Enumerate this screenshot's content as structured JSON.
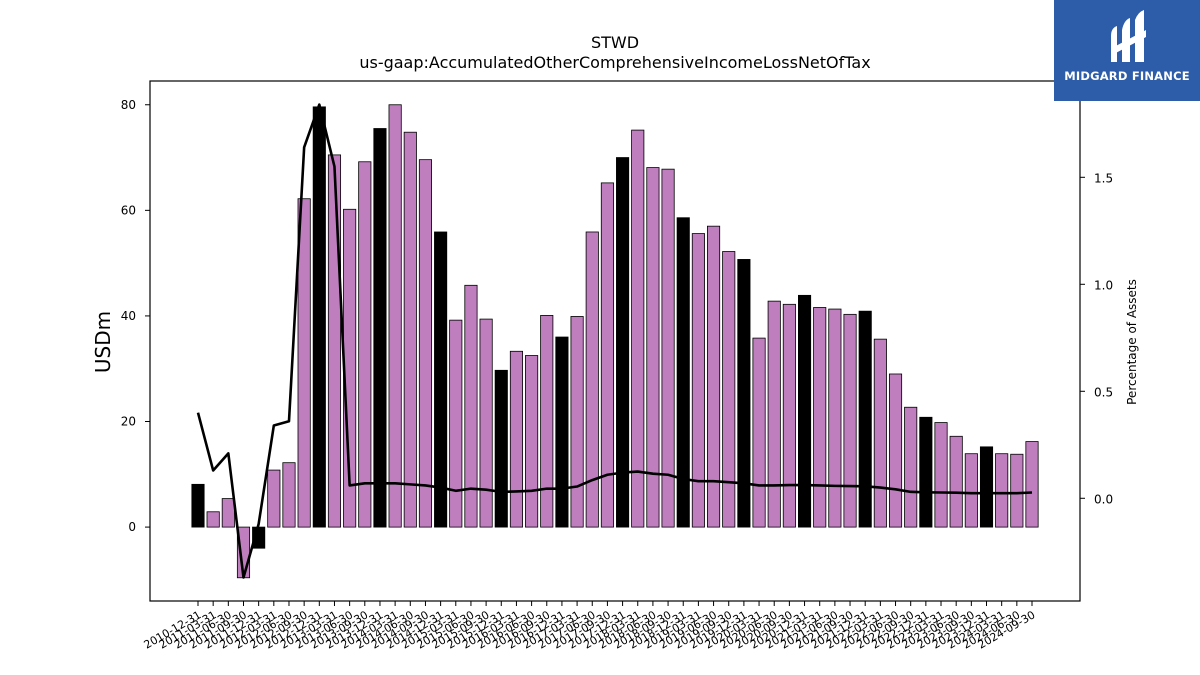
{
  "chart_data": {
    "type": "bar",
    "title": "STWD",
    "subtitle": "us-gaap:AccumulatedOtherComprehensiveIncomeLossNetOfTax",
    "ylabel": "USDm",
    "y2label": "Percentage of Assets",
    "ylim": [
      -14,
      84.5
    ],
    "y2lim": [
      -0.48,
      1.95
    ],
    "yticks": [
      0,
      20,
      40,
      60,
      80
    ],
    "y2ticks": [
      0.0,
      0.5,
      1.0,
      1.5
    ],
    "categories": [
      "2010-12-31",
      "2011-03-31",
      "2011-06-30",
      "2011-09-30",
      "2011-12-31",
      "2012-03-31",
      "2012-06-30",
      "2012-09-30",
      "2012-12-31",
      "2013-03-31",
      "2013-06-30",
      "2013-09-30",
      "2013-12-31",
      "2014-03-31",
      "2014-06-30",
      "2014-09-30",
      "2014-12-31",
      "2015-03-31",
      "2015-06-30",
      "2015-09-30",
      "2015-12-31",
      "2016-03-31",
      "2016-06-30",
      "2016-09-30",
      "2016-12-31",
      "2017-03-31",
      "2017-06-30",
      "2017-09-30",
      "2017-12-31",
      "2018-03-31",
      "2018-06-30",
      "2018-09-30",
      "2018-12-31",
      "2019-03-31",
      "2019-06-30",
      "2019-09-30",
      "2019-12-31",
      "2020-03-31",
      "2020-06-30",
      "2020-09-30",
      "2020-12-31",
      "2021-03-31",
      "2021-06-30",
      "2021-09-30",
      "2021-12-31",
      "2022-03-31",
      "2022-06-30",
      "2022-09-30",
      "2022-12-31",
      "2023-03-31",
      "2023-06-30",
      "2023-09-30",
      "2023-12-31",
      "2024-03-31",
      "2024-06-30",
      "2024-09-30"
    ],
    "values": [
      8.1,
      2.9,
      5.4,
      -9.6,
      -4.0,
      10.8,
      12.2,
      62.2,
      79.6,
      70.5,
      60.2,
      69.2,
      75.5,
      80.0,
      74.8,
      69.6,
      55.9,
      39.2,
      45.8,
      39.4,
      29.7,
      33.3,
      32.5,
      40.1,
      36.0,
      39.9,
      55.9,
      65.2,
      70.0,
      75.2,
      68.1,
      67.8,
      58.6,
      55.6,
      57.0,
      52.2,
      50.7,
      35.8,
      42.8,
      42.2,
      43.9,
      41.6,
      41.3,
      40.3,
      40.9,
      35.6,
      29.0,
      22.7,
      20.8,
      19.8,
      17.2,
      13.9,
      15.2,
      13.9,
      13.8,
      16.2
    ],
    "highlight_categories": [
      "2010-12-31",
      "2011-12-31",
      "2012-12-31",
      "2013-12-31",
      "2014-12-31",
      "2015-12-31",
      "2016-12-31",
      "2017-12-31",
      "2018-12-31",
      "2019-12-31",
      "2020-12-31",
      "2021-12-31",
      "2022-12-31",
      "2023-12-31"
    ],
    "line_series": {
      "name": "Percentage of Assets",
      "values": [
        0.4,
        0.13,
        0.21,
        -0.37,
        -0.12,
        0.34,
        0.36,
        1.64,
        1.84,
        1.55,
        0.06,
        0.07,
        0.07,
        0.07,
        0.065,
        0.06,
        0.05,
        0.035,
        0.045,
        0.04,
        0.03,
        0.032,
        0.035,
        0.045,
        0.045,
        0.055,
        0.085,
        0.11,
        0.12,
        0.125,
        0.115,
        0.11,
        0.09,
        0.08,
        0.08,
        0.075,
        0.07,
        0.06,
        0.06,
        0.062,
        0.062,
        0.06,
        0.058,
        0.057,
        0.056,
        0.05,
        0.042,
        0.03,
        0.028,
        0.027,
        0.026,
        0.024,
        0.024,
        0.024,
        0.024,
        0.027
      ]
    },
    "colors": {
      "bar": "#bf7fbf",
      "bar_highlight": "#000000",
      "line": "#000000"
    },
    "grid": false,
    "legend": "none"
  },
  "logo": {
    "text": "MIDGARD FINANCE",
    "icon": "midgard-logo-icon",
    "background": "#2d5ca9"
  }
}
